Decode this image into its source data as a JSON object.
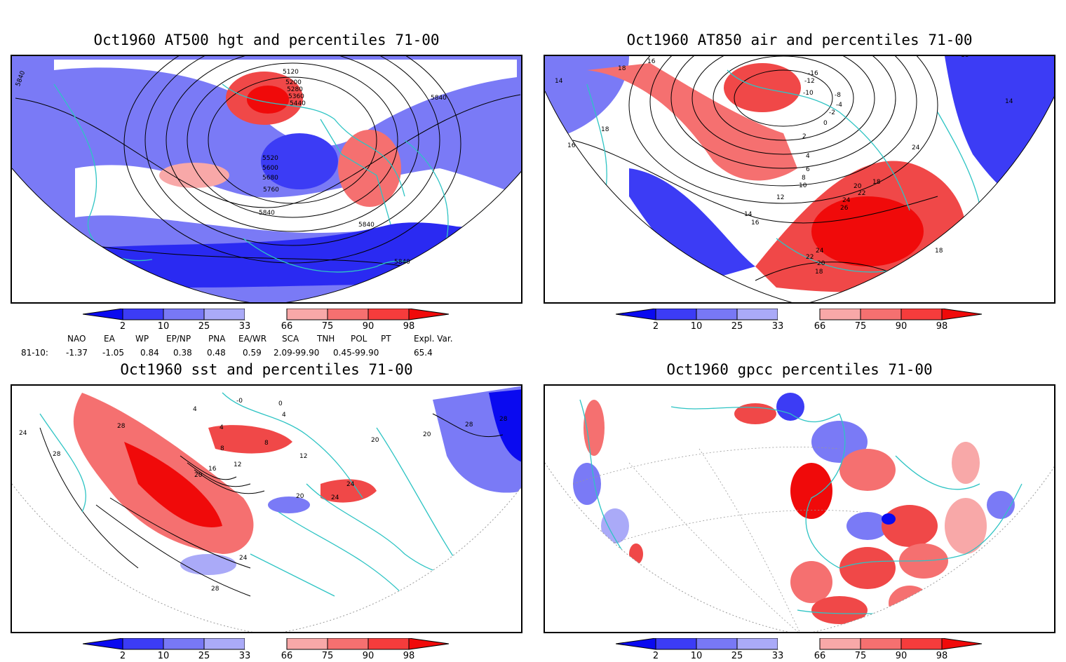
{
  "panels": [
    {
      "title": "Oct1960 AT500 hgt and percentiles 71-00",
      "contour_labels": [
        "5120",
        "5200",
        "5280",
        "5360",
        "5440",
        "5520",
        "5600",
        "5680",
        "5760",
        "5840",
        "5840",
        "5840",
        "5840",
        "5840"
      ]
    },
    {
      "title": "Oct1960 AT850 air and percentiles 71-00",
      "contour_labels": [
        "18",
        "16",
        "14",
        "14",
        "18",
        "16",
        "-16",
        "-12",
        "-10",
        "-8",
        "-4",
        "-2",
        "0",
        "2",
        "4",
        "6",
        "8",
        "10",
        "12",
        "14",
        "16",
        "18",
        "20",
        "22",
        "24",
        "26",
        "24",
        "22",
        "20",
        "18",
        "18",
        "24",
        "18"
      ]
    },
    {
      "title": "Oct1960 sst and percentiles 71-00",
      "contour_labels": [
        "28",
        "24",
        "28",
        "4",
        "-0",
        "4",
        "0",
        "4",
        "8",
        "8",
        "12",
        "16",
        "20",
        "20",
        "24",
        "24",
        "20",
        "28",
        "28",
        "24",
        "28",
        "12",
        "20"
      ]
    },
    {
      "title": "Oct1960 gpcc percentiles 71-00",
      "contour_labels": []
    }
  ],
  "colorbar": {
    "ticks": [
      "2",
      "10",
      "25",
      "33",
      "66",
      "75",
      "90",
      "98"
    ],
    "colors": {
      "blue_dark": "#0a0af0",
      "blue_mid": "#3c3cf5",
      "blue_light": "#7878f5",
      "blue_pale": "#aaaaf8",
      "red_pale": "#f8a8a8",
      "red_light": "#f57070",
      "red_mid": "#f53c3c",
      "red_dark": "#f00a0a"
    }
  },
  "indices": {
    "headers": [
      "NAO",
      "EA",
      "WP",
      "EP/NP",
      "PNA",
      "EA/WR",
      "SCA",
      "TNH",
      "POL",
      "PT",
      "Expl. Var."
    ],
    "row_label": "81-10:",
    "values": [
      "-1.37",
      "-1.05",
      "0.84",
      "0.38",
      "0.48",
      "0.59",
      "2.09-99.90",
      "0.45-99.90",
      "65.4"
    ]
  },
  "map_colors": {
    "coast": "#2ec4c4",
    "frame": "#000000",
    "grid": "#999999"
  }
}
